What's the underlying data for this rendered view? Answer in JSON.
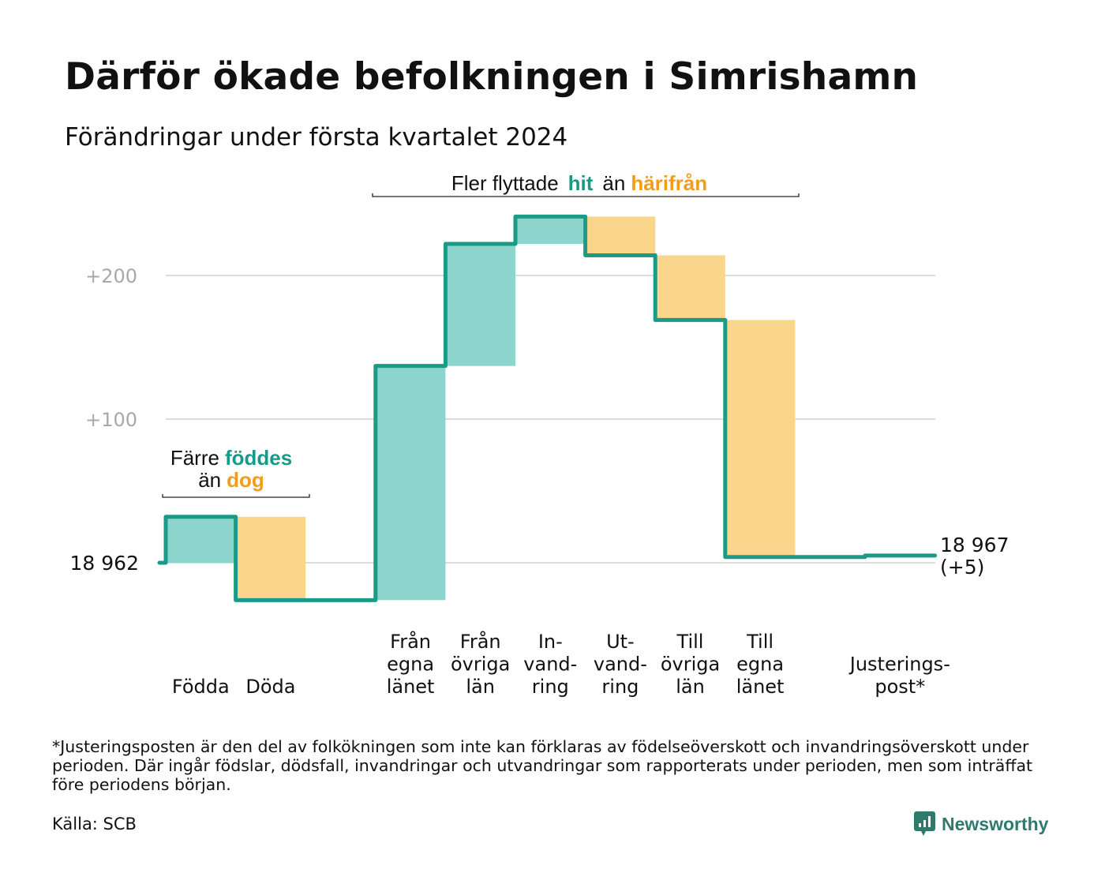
{
  "title": "Därför ökade befolkningen i Simrishamn",
  "subtitle": "Förändringar under första kvartalet 2024",
  "colors": {
    "line": "#1b9a87",
    "positive": "#8dd5cc",
    "negative": "#fad58c",
    "accent_teal": "#179a88",
    "accent_orange": "#f29d1a",
    "grid": "#dcdcdc",
    "tick_text": "#a8a8a8",
    "brand": "#2f7a6d"
  },
  "chart_data": {
    "type": "waterfall",
    "baseline": 18962,
    "baseline_label": "18 962",
    "end_value": 18967,
    "end_label": "18 967",
    "end_change_label": "(+5)",
    "y_ticks": [
      {
        "value": 100,
        "label": "+100"
      },
      {
        "value": 200,
        "label": "+200"
      }
    ],
    "ylim": [
      -30,
      250
    ],
    "grid": true,
    "steps": [
      {
        "label_lines": [
          "Födda"
        ],
        "change": 32,
        "start": 0,
        "end": 32
      },
      {
        "label_lines": [
          "Döda"
        ],
        "change": -58,
        "start": 32,
        "end": -26
      },
      {
        "label_lines": [],
        "change": 0,
        "start": -26,
        "end": -26
      },
      {
        "label_lines": [
          "Från",
          "egna",
          "länet"
        ],
        "change": 163,
        "start": -26,
        "end": 137
      },
      {
        "label_lines": [
          "Från",
          "övriga",
          "län"
        ],
        "change": 85,
        "start": 137,
        "end": 222
      },
      {
        "label_lines": [
          "In-",
          "vand-",
          "ring"
        ],
        "change": 19,
        "start": 222,
        "end": 241
      },
      {
        "label_lines": [
          "Ut-",
          "vand-",
          "ring"
        ],
        "change": -27,
        "start": 241,
        "end": 214
      },
      {
        "label_lines": [
          "Till",
          "övriga",
          "län"
        ],
        "change": -45,
        "start": 214,
        "end": 169
      },
      {
        "label_lines": [
          "Till",
          "egna",
          "länet"
        ],
        "change": -165,
        "start": 169,
        "end": 4
      },
      {
        "label_lines": [],
        "change": 0,
        "start": 4,
        "end": 4
      },
      {
        "label_lines": [
          "Justerings-",
          "post*"
        ],
        "change": 1,
        "start": 4,
        "end": 5
      }
    ],
    "annotations": [
      {
        "parts": [
          {
            "text": "Färre",
            "tone": "plain"
          },
          {
            "text": "föddes",
            "tone": "teal"
          },
          {
            "text": "än",
            "tone": "plain"
          },
          {
            "text": "dog",
            "tone": "orange"
          }
        ]
      },
      {
        "parts": [
          {
            "text": "Fler flyttade",
            "tone": "plain"
          },
          {
            "text": "hit",
            "tone": "teal"
          },
          {
            "text": "än",
            "tone": "plain"
          },
          {
            "text": "härifrån",
            "tone": "orange"
          }
        ]
      }
    ]
  },
  "footnote": "*Justeringsposten är den del av folkökningen som inte kan förklaras av födelseöverskott och invandringsöverskott under perioden. Där ingår födslar, dödsfall, invandringar och utvandringar som rapporterats under perioden, men som inträffat före periodens början.",
  "source": "Källa: SCB",
  "brand": {
    "name": "Newsworthy",
    "icon": "newsworthy-logo-icon"
  }
}
